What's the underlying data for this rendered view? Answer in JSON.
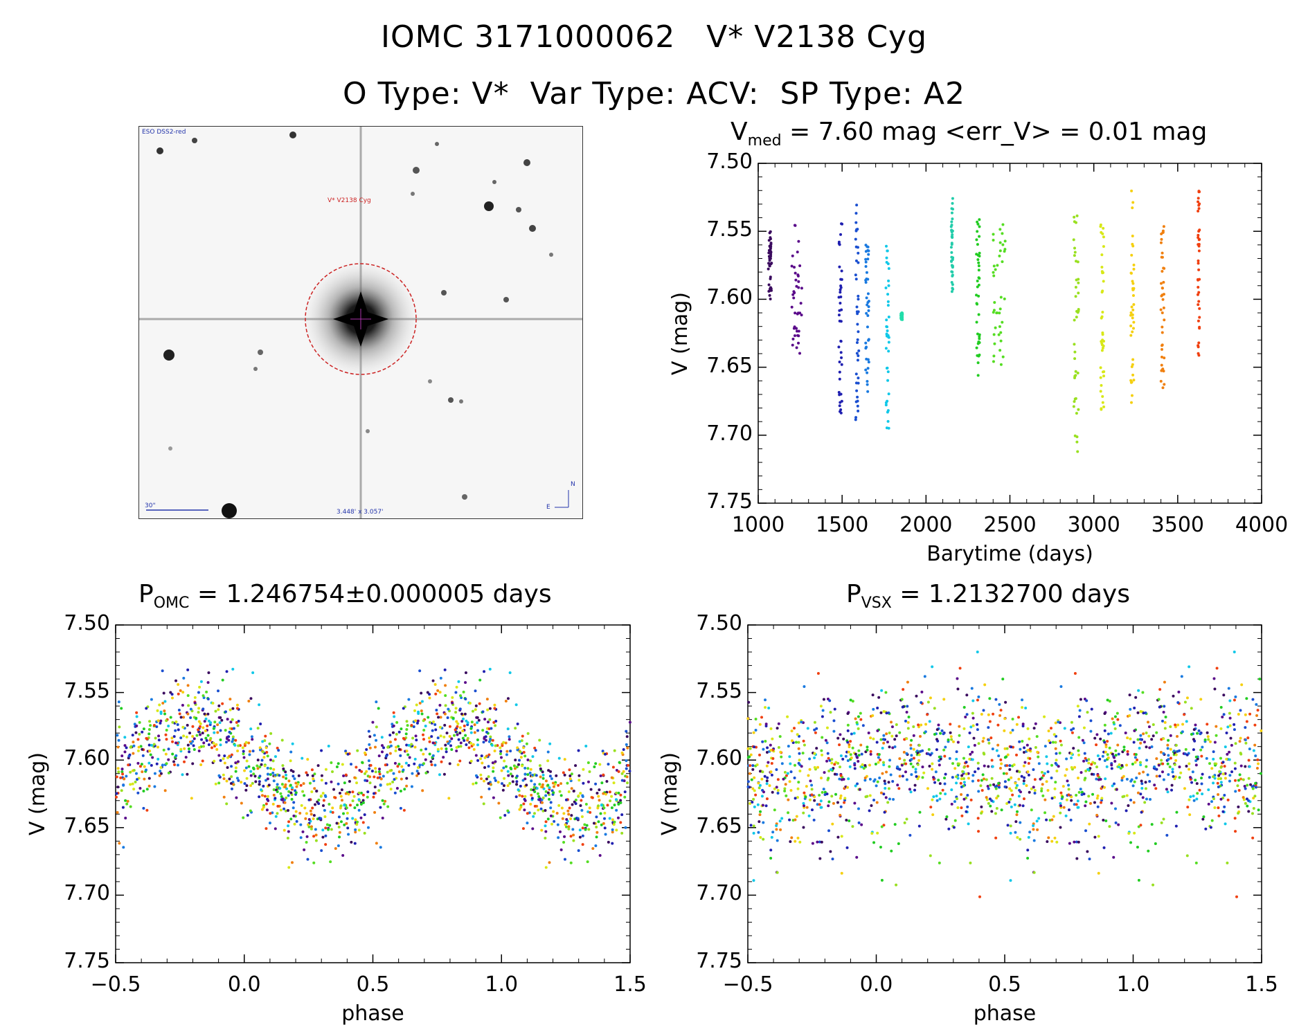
{
  "header": {
    "title": "IOMC 3171000062   V* V2138 Cyg",
    "subtitle": "O Type: V*  Var Type: ACV:  SP Type: A2"
  },
  "finder_chart": {
    "survey_label": "ESO DSS2-red",
    "target_label": "V* V2138 Cyg",
    "scale_label": "30\"",
    "field_label": "3.448' x 3.057'",
    "north_label": "N",
    "east_label": "E"
  },
  "chart_data": [
    {
      "type": "scatter",
      "title_main": "V",
      "title_sub": "med",
      "title_rest": " = 7.60 mag <err_V> = 0.01 mag",
      "xlabel": "Barytime (days)",
      "ylabel": "V (mag)",
      "xlim": [
        1000,
        4000
      ],
      "ylim": [
        7.75,
        7.5
      ],
      "y_inverted": true,
      "xticks": [
        "1000",
        "1500",
        "2000",
        "2500",
        "3000",
        "3500",
        "4000"
      ],
      "yticks": [
        "7.50",
        "7.55",
        "7.60",
        "7.65",
        "7.70",
        "7.75"
      ],
      "color_scheme": "rainbow by time: violet (early) to red (late)",
      "groups": [
        {
          "x": [
            1060,
            1080
          ],
          "y_range": [
            7.55,
            7.6
          ],
          "color": "#3a0a5e"
        },
        {
          "x": [
            1200,
            1260
          ],
          "y_range": [
            7.545,
            7.64
          ],
          "color": "#5a0a8a"
        },
        {
          "x": [
            1480,
            1500
          ],
          "y_range": [
            7.54,
            7.685
          ],
          "color": "#2020b0"
        },
        {
          "x": [
            1580,
            1600
          ],
          "y_range": [
            7.53,
            7.69
          ],
          "color": "#1a4fd0"
        },
        {
          "x": [
            1640,
            1660
          ],
          "y_range": [
            7.555,
            7.67
          ],
          "color": "#1a7ae0"
        },
        {
          "x": [
            1760,
            1780
          ],
          "y_range": [
            7.56,
            7.7
          ],
          "color": "#11c8e8"
        },
        {
          "x": [
            1850,
            1860
          ],
          "y_range": [
            7.61,
            7.615
          ],
          "color": "#22ddaa"
        },
        {
          "x": [
            2150,
            2160
          ],
          "y_range": [
            7.525,
            7.595
          ],
          "color": "#22ccaa"
        },
        {
          "x": [
            2300,
            2320
          ],
          "y_range": [
            7.54,
            7.66
          ],
          "color": "#22cc22"
        },
        {
          "x": [
            2400,
            2480
          ],
          "y_range": [
            7.545,
            7.655
          ],
          "color": "#55dd22"
        },
        {
          "x": [
            2880,
            2910
          ],
          "y_range": [
            7.535,
            7.72
          ],
          "color": "#99e020"
        },
        {
          "x": [
            3040,
            3060
          ],
          "y_range": [
            7.54,
            7.685
          ],
          "color": "#d8e818"
        },
        {
          "x": [
            3220,
            3240
          ],
          "y_range": [
            7.52,
            7.685
          ],
          "color": "#f5d010"
        },
        {
          "x": [
            3400,
            3420
          ],
          "y_range": [
            7.54,
            7.67
          ],
          "color": "#f08010"
        },
        {
          "x": [
            3620,
            3630
          ],
          "y_range": [
            7.52,
            7.645
          ],
          "color": "#f04010"
        }
      ]
    },
    {
      "type": "scatter",
      "title_main": "P",
      "title_sub": "OMC",
      "title_rest": " = 1.246754±0.000005 days",
      "xlabel": "phase",
      "ylabel": "V (mag)",
      "xlim": [
        -0.5,
        1.5
      ],
      "ylim": [
        7.75,
        7.5
      ],
      "y_inverted": true,
      "xticks": [
        "−0.5",
        "0.0",
        "0.5",
        "1.0",
        "1.5"
      ],
      "yticks": [
        "7.50",
        "7.55",
        "7.60",
        "7.65",
        "7.70",
        "7.75"
      ],
      "period_days": 1.246754,
      "light_curve": {
        "mean": 7.605,
        "amplitude": 0.03,
        "max_phase": -0.2,
        "scatter": 0.025,
        "points_per_cycle": 800
      }
    },
    {
      "type": "scatter",
      "title_main": "P",
      "title_sub": "VSX",
      "title_rest": " = 1.2132700 days",
      "xlabel": "phase",
      "ylabel": "V (mag)",
      "xlim": [
        -0.5,
        1.5
      ],
      "ylim": [
        7.75,
        7.5
      ],
      "y_inverted": true,
      "xticks": [
        "−0.5",
        "0.0",
        "0.5",
        "1.0",
        "1.5"
      ],
      "yticks": [
        "7.50",
        "7.55",
        "7.60",
        "7.65",
        "7.70",
        "7.75"
      ],
      "period_days": 1.21327,
      "light_curve": {
        "mean": 7.605,
        "amplitude": 0.008,
        "max_phase": 0.1,
        "scatter": 0.035,
        "points_per_cycle": 800
      }
    }
  ]
}
